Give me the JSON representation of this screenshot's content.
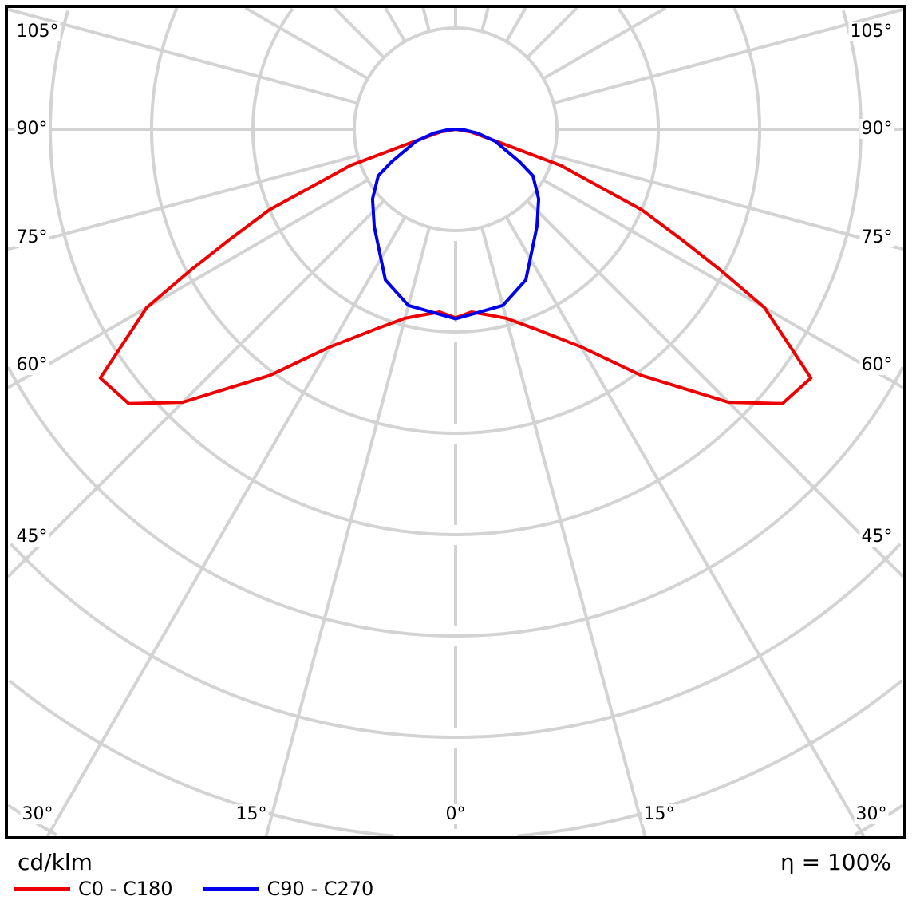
{
  "chart_data": {
    "type": "polar-line",
    "unit_label": "cd/klm",
    "efficiency_label": "η = 100%",
    "angle_labels": [
      "105°",
      "90°",
      "75°",
      "60°",
      "45°",
      "30°",
      "15°",
      "0°"
    ],
    "angular_grid_step_deg": 15,
    "grid": true,
    "legend_placement": "bottom-left",
    "series": [
      {
        "name": "C0 - C180",
        "color": "#ee0000",
        "points": [
          [
            0,
            1.86
          ],
          [
            5,
            1.81
          ],
          [
            10,
            1.86
          ],
          [
            15,
            1.93
          ],
          [
            22,
            2.13
          ],
          [
            30,
            2.48
          ],
          [
            37,
            3.04
          ],
          [
            45,
            3.81
          ],
          [
            50,
            4.21
          ],
          [
            55,
            4.28
          ],
          [
            60,
            3.52
          ],
          [
            62,
            2.96
          ],
          [
            64,
            2.48
          ],
          [
            66.6,
            2.0
          ],
          [
            71,
            1.1
          ],
          [
            73,
            0.5
          ],
          [
            80,
            0.15
          ],
          [
            90,
            0
          ]
        ]
      },
      {
        "name": "C90 - C270",
        "color": "#0000ee",
        "points": [
          [
            0,
            1.87
          ],
          [
            15,
            1.8
          ],
          [
            25,
            1.64
          ],
          [
            40,
            1.25
          ],
          [
            50,
            1.07
          ],
          [
            59,
            0.89
          ],
          [
            63,
            0.71
          ],
          [
            73,
            0.41
          ],
          [
            80,
            0.22
          ],
          [
            86,
            0.08
          ],
          [
            90,
            0
          ]
        ]
      }
    ]
  }
}
